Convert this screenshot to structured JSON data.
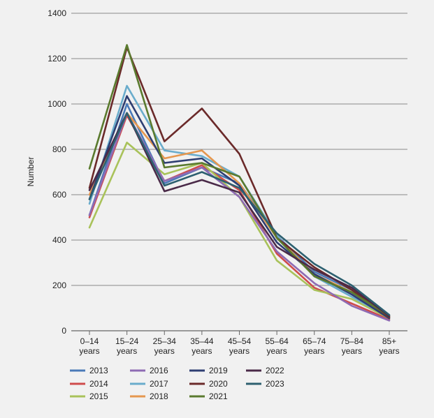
{
  "chart_data": {
    "type": "line",
    "title": "",
    "xlabel": "",
    "ylabel": "Number",
    "ylim": [
      0,
      1400
    ],
    "yticks": [
      0,
      200,
      400,
      600,
      800,
      1000,
      1200,
      1400
    ],
    "grid": "horizontal",
    "legend_position": "bottom",
    "categories": [
      [
        "0–14",
        "years"
      ],
      [
        "15–24",
        "years"
      ],
      [
        "25–34",
        "years"
      ],
      [
        "35–44",
        "years"
      ],
      [
        "45–54",
        "years"
      ],
      [
        "55–64",
        "years"
      ],
      [
        "65–74",
        "years"
      ],
      [
        "75–84",
        "years"
      ],
      [
        "85+",
        "years"
      ]
    ],
    "series": [
      {
        "name": "2013",
        "color": "#4a7ab8",
        "values": [
          510,
          1000,
          650,
          720,
          650,
          420,
          260,
          180,
          60
        ]
      },
      {
        "name": "2014",
        "color": "#cf4c4c",
        "values": [
          500,
          950,
          660,
          730,
          620,
          340,
          190,
          120,
          50
        ]
      },
      {
        "name": "2015",
        "color": "#a9c25a",
        "values": [
          455,
          830,
          690,
          740,
          590,
          310,
          180,
          140,
          55
        ]
      },
      {
        "name": "2016",
        "color": "#8e6bb4",
        "values": [
          510,
          960,
          660,
          720,
          590,
          350,
          210,
          110,
          45
        ]
      },
      {
        "name": "2017",
        "color": "#6aaccc",
        "values": [
          560,
          1080,
          795,
          770,
          680,
          420,
          240,
          150,
          60
        ]
      },
      {
        "name": "2018",
        "color": "#e5974f",
        "values": [
          600,
          960,
          760,
          795,
          650,
          410,
          250,
          170,
          60
        ]
      },
      {
        "name": "2019",
        "color": "#2e3e72",
        "values": [
          580,
          1035,
          740,
          760,
          640,
          390,
          250,
          160,
          55
        ]
      },
      {
        "name": "2020",
        "color": "#6b2a2a",
        "values": [
          630,
          1250,
          835,
          980,
          780,
          410,
          280,
          180,
          60
        ]
      },
      {
        "name": "2021",
        "color": "#5a7a2e",
        "values": [
          715,
          1260,
          720,
          740,
          680,
          410,
          240,
          170,
          65
        ]
      },
      {
        "name": "2022",
        "color": "#4a2a48",
        "values": [
          620,
          960,
          615,
          665,
          610,
          370,
          270,
          190,
          65
        ]
      },
      {
        "name": "2023",
        "color": "#2d6070",
        "values": [
          580,
          960,
          640,
          700,
          630,
          430,
          295,
          200,
          70
        ]
      }
    ]
  }
}
